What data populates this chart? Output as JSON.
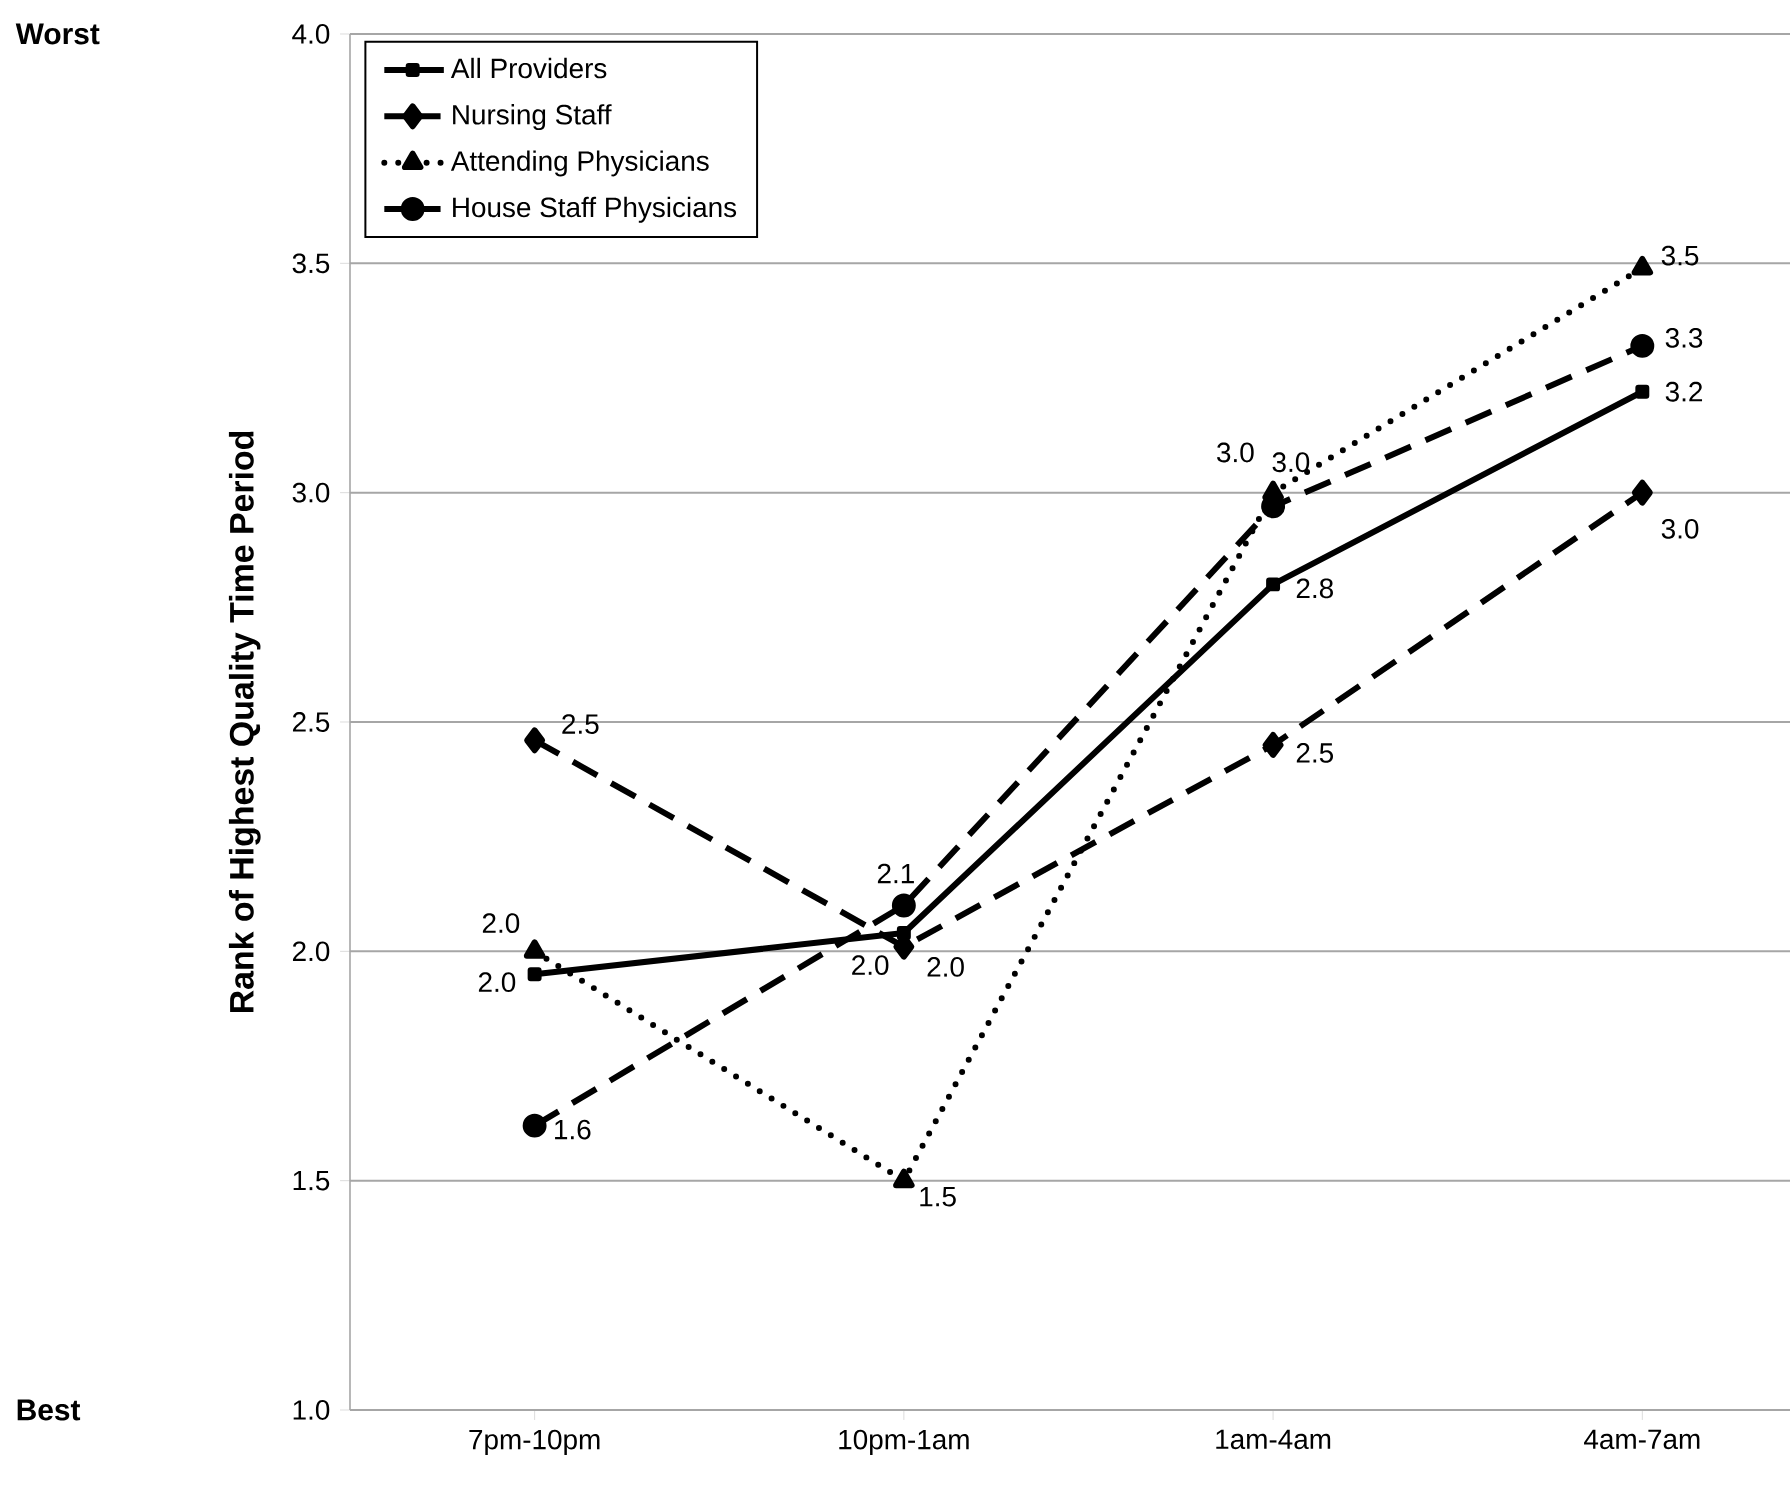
{
  "chart_data": {
    "type": "line",
    "ylabel": "Rank of Highest Quality Time Period",
    "categories": [
      "7pm-10pm",
      "10pm-1am",
      "1am-4am",
      "4am-7am"
    ],
    "series": [
      {
        "name": "All Providers",
        "color": "#000000",
        "marker": "square",
        "line_style": "solid",
        "values": [
          1.95,
          2.04,
          2.8,
          3.22
        ],
        "value_labels": [
          "2.0",
          "2.0",
          "2.8",
          "3.2"
        ]
      },
      {
        "name": "Nursing Staff",
        "color": "#000000",
        "marker": "diamond",
        "line_style": "dashed",
        "values": [
          2.46,
          2.01,
          2.45,
          3.0
        ],
        "value_labels": [
          "2.5",
          "2.0",
          "2.5",
          "3.0"
        ]
      },
      {
        "name": "Attending Physicians",
        "color": "#000000",
        "marker": "triangle",
        "line_style": "dotted",
        "values": [
          2.0,
          1.5,
          3.0,
          3.49
        ],
        "value_labels": [
          "2.0",
          "1.5",
          "3.0",
          "3.5"
        ]
      },
      {
        "name": "House Staff Physicians",
        "color": "#000000",
        "marker": "circle",
        "line_style": "dashed",
        "values": [
          1.62,
          2.1,
          2.97,
          3.32
        ],
        "value_labels": [
          "1.6",
          "2.1",
          "3.0",
          "3.3"
        ]
      }
    ],
    "ylim": [
      1.0,
      4.0
    ],
    "yticks": [
      {
        "value": 1.0,
        "label": "1.0"
      },
      {
        "value": 1.5,
        "label": "1.5"
      },
      {
        "value": 2.0,
        "label": "2.0"
      },
      {
        "value": 2.5,
        "label": "2.5"
      },
      {
        "value": 3.0,
        "label": "3.0"
      },
      {
        "value": 3.5,
        "label": "3.5"
      },
      {
        "value": 4.0,
        "label": "4.0"
      }
    ],
    "annotations": [
      "Worst",
      "Best"
    ],
    "grid": "y",
    "legend": "top left"
  }
}
